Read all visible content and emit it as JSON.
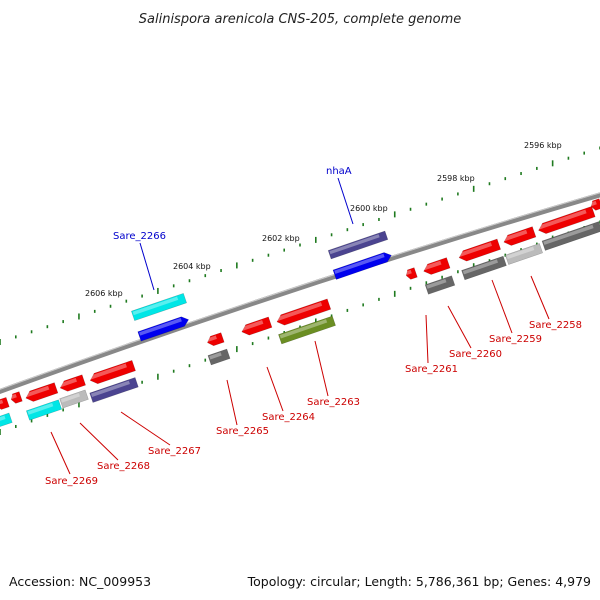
{
  "title": "Salinispora arenicola CNS-205, complete genome",
  "footer": {
    "accession": "Accession: NC_009953",
    "summary": "Topology: circular; Length: 5,786,361 bp; Genes: 4,979"
  },
  "scale_labels": [
    "2596 kbp",
    "2598 kbp",
    "2600 kbp",
    "2602 kbp",
    "2604 kbp",
    "2606 kbp"
  ],
  "gene_labels": [
    {
      "name": "nhaA",
      "color": "#0000cc"
    },
    {
      "name": "Sare_2266",
      "color": "#0000cc"
    },
    {
      "name": "Sare_2258",
      "color": "#cc0000"
    },
    {
      "name": "Sare_2259",
      "color": "#cc0000"
    },
    {
      "name": "Sare_2260",
      "color": "#cc0000"
    },
    {
      "name": "Sare_2261",
      "color": "#cc0000"
    },
    {
      "name": "Sare_2263",
      "color": "#cc0000"
    },
    {
      "name": "Sare_2264",
      "color": "#cc0000"
    },
    {
      "name": "Sare_2265",
      "color": "#cc0000"
    },
    {
      "name": "Sare_2267",
      "color": "#cc0000"
    },
    {
      "name": "Sare_2268",
      "color": "#cc0000"
    },
    {
      "name": "Sare_2269",
      "color": "#cc0000"
    }
  ],
  "colors": {
    "backbone": "#888888",
    "scale_ticks": "#1f7a1f",
    "red": "#ee0000",
    "blue": "#0000ee",
    "slate": "#4b4490",
    "cyan": "#00e6e6",
    "olive": "#6b8e23",
    "dark_gray": "#666666",
    "light_gray": "#bbbbbb"
  }
}
